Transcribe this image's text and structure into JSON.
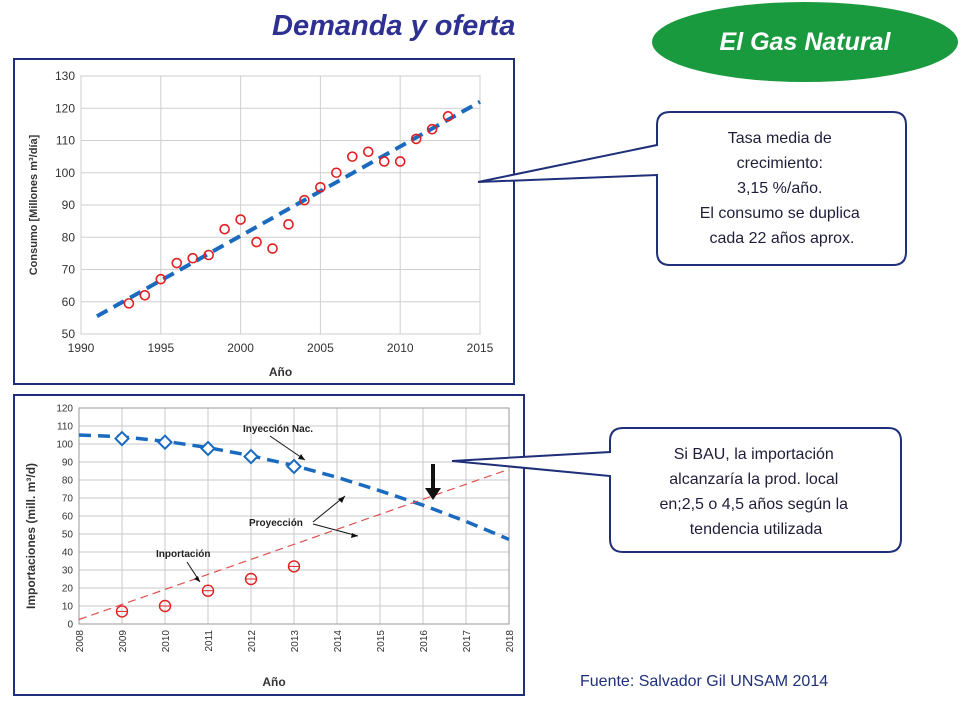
{
  "header": {
    "title": "Demanda y oferta",
    "badge": "El Gas Natural"
  },
  "source": "Fuente: Salvador Gil UNSAM 2014",
  "callouts": [
    {
      "lines": [
        "Tasa media de",
        "crecimiento:",
        "3,15 %/año.",
        "El consumo se duplica",
        "cada 22 años aprox."
      ]
    },
    {
      "lines": [
        "Si BAU, la importación",
        "alcanzaría la prod. local",
        "en;2,5 o  4,5 años según la",
        "tendencia utilizada"
      ]
    }
  ],
  "chart_data": [
    {
      "type": "scatter",
      "title": "",
      "xlabel": "Año",
      "ylabel": "Consumo [Millones m³/día]",
      "xlim": [
        1990,
        2015
      ],
      "ylim": [
        50,
        130
      ],
      "xticks": [
        1990,
        1995,
        2000,
        2005,
        2010,
        2015
      ],
      "yticks": [
        50,
        60,
        70,
        80,
        90,
        100,
        110,
        120,
        130
      ],
      "grid": true,
      "series": [
        {
          "kind": "points",
          "color": "#e02020",
          "x": [
            1993,
            1994,
            1995,
            1996,
            1997,
            1998,
            1999,
            2000,
            2001,
            2002,
            2003,
            2004,
            2005,
            2006,
            2007,
            2008,
            2009,
            2010,
            2011,
            2012,
            2013
          ],
          "y": [
            59.5,
            62,
            67,
            72,
            73.5,
            74.5,
            82.5,
            85.5,
            78.5,
            76.5,
            84,
            91.5,
            95.5,
            100,
            105,
            106.5,
            103.5,
            103.5,
            110.5,
            113.5,
            117.5
          ]
        },
        {
          "kind": "trend",
          "color": "#1a6abf",
          "x": [
            1991,
            2015
          ],
          "y": [
            55.5,
            122
          ]
        }
      ]
    },
    {
      "type": "line",
      "title": "",
      "xlabel": "Año",
      "ylabel": "Importaciones (mill. m³/d)",
      "xlim": [
        2008,
        2018
      ],
      "ylim": [
        0,
        120
      ],
      "xticks": [
        2008,
        2009,
        2010,
        2011,
        2012,
        2013,
        2014,
        2015,
        2016,
        2017,
        2018
      ],
      "yticks": [
        0,
        10,
        20,
        30,
        40,
        50,
        60,
        70,
        80,
        90,
        100,
        110,
        120
      ],
      "grid": true,
      "series": [
        {
          "name": "Inyección Nac.",
          "kind": "diamond-markers",
          "color": "#1a6abf",
          "x": [
            2009,
            2010,
            2011,
            2012,
            2013
          ],
          "y": [
            103,
            101,
            97.5,
            93,
            87.5
          ]
        },
        {
          "kind": "dashed-projection",
          "color": "#1a6abf",
          "x": [
            2008,
            2009,
            2010,
            2011,
            2012,
            2013,
            2014,
            2015,
            2016,
            2017,
            2018
          ],
          "y": [
            105,
            104,
            101.5,
            98,
            93.5,
            88,
            81.5,
            74,
            66,
            57,
            47
          ]
        },
        {
          "name": "Inportación",
          "kind": "circle-markers",
          "color": "#e02020",
          "x": [
            2009,
            2010,
            2011,
            2012,
            2013
          ],
          "y": [
            7,
            10,
            18.5,
            25,
            32
          ]
        },
        {
          "kind": "thin-dashed-projection",
          "color": "#e05050",
          "x": [
            2008,
            2018
          ],
          "y": [
            2.5,
            86
          ]
        }
      ],
      "annotations": [
        "Inyección Nac.",
        "Proyección",
        "Inportación"
      ]
    }
  ]
}
